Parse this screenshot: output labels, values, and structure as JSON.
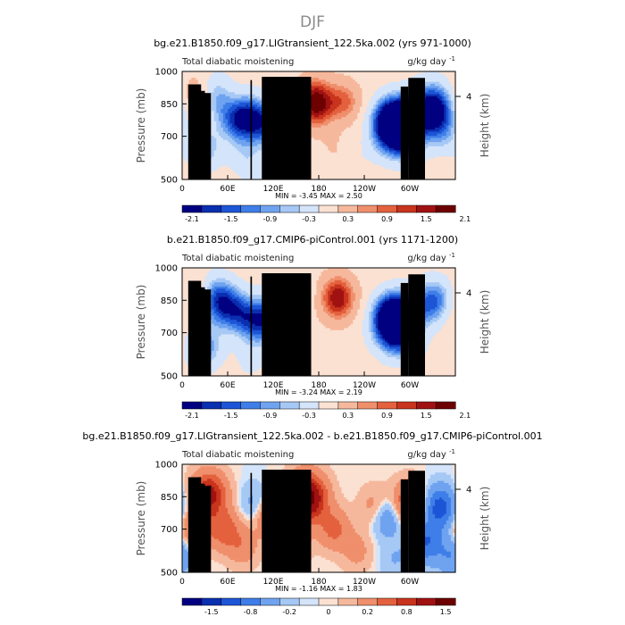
{
  "figure_title": "DJF",
  "chart_data": [
    {
      "type": "heatmap",
      "title": "bg.e21.B1850.f09_g17.LIGtransient_122.5ka.002 (yrs 971-1000)",
      "left_string": "Total diabatic moistening",
      "units": "g/kg day",
      "units_exp": "-1",
      "ylabel": "Pressure (mb)",
      "ylabel_right": "Height (km)",
      "yticks": [
        "500",
        "700",
        "850",
        "1000"
      ],
      "right_ticks": [
        "4"
      ],
      "xticks": [
        "0",
        "60E",
        "120E",
        "180",
        "120W",
        "60W"
      ],
      "xlim": [
        0,
        360
      ],
      "ylim": [
        1000,
        500
      ],
      "min_max_text": "MIN =   -3.45   MAX =    2.50",
      "colorbar_labels": [
        "-2.1",
        "-1.5",
        "-0.9",
        "-0.3",
        "0.3",
        "0.9",
        "1.5",
        "2.1"
      ],
      "features": [
        {
          "lon": 175,
          "p": 855,
          "value": 2.5
        },
        {
          "lon": 215,
          "p": 860,
          "value": 1.2
        },
        {
          "lon": 130,
          "p": 720,
          "value": 0.5
        },
        {
          "lon": 200,
          "p": 640,
          "value": 0.3
        },
        {
          "lon": 24,
          "p": 880,
          "value": 1.8
        },
        {
          "lon": 30,
          "p": 640,
          "value": -1.2
        },
        {
          "lon": 38,
          "p": 880,
          "value": -2.0
        },
        {
          "lon": 70,
          "p": 770,
          "value": -1.5
        },
        {
          "lon": 90,
          "p": 790,
          "value": -1.8
        },
        {
          "lon": 112,
          "p": 740,
          "value": -1.5
        },
        {
          "lon": 80,
          "p": 600,
          "value": -0.6
        },
        {
          "lon": 140,
          "p": 830,
          "value": -0.9
        },
        {
          "lon": 100,
          "p": 550,
          "value": -0.4
        },
        {
          "lon": 280,
          "p": 720,
          "value": -2.8
        },
        {
          "lon": 272,
          "p": 780,
          "value": -1.8
        },
        {
          "lon": 292,
          "p": 800,
          "value": -1.5
        },
        {
          "lon": 300,
          "p": 670,
          "value": -0.9
        },
        {
          "lon": 330,
          "p": 820,
          "value": -3.2
        },
        {
          "lon": 345,
          "p": 700,
          "value": -0.6
        },
        {
          "lon": 240,
          "p": 620,
          "value": -0.2
        }
      ]
    },
    {
      "type": "heatmap",
      "title": "b.e21.B1850.f09_g17.CMIP6-piControl.001 (yrs 1171-1200)",
      "left_string": "Total diabatic moistening",
      "units": "g/kg day",
      "units_exp": "-1",
      "ylabel": "Pressure (mb)",
      "ylabel_right": "Height (km)",
      "yticks": [
        "500",
        "700",
        "850",
        "1000"
      ],
      "right_ticks": [
        "4"
      ],
      "xticks": [
        "0",
        "60E",
        "120E",
        "180",
        "120W",
        "60W"
      ],
      "xlim": [
        0,
        360
      ],
      "ylim": [
        1000,
        500
      ],
      "min_max_text": "MIN =   -3.24   MAX =    2.19",
      "colorbar_labels": [
        "-2.1",
        "-1.5",
        "-0.9",
        "-0.3",
        "0.3",
        "0.9",
        "1.5",
        "2.1"
      ],
      "features": [
        {
          "lon": 205,
          "p": 860,
          "value": 2.1
        },
        {
          "lon": 24,
          "p": 880,
          "value": 1.2
        },
        {
          "lon": 150,
          "p": 760,
          "value": 0.3
        },
        {
          "lon": 30,
          "p": 630,
          "value": -1.5
        },
        {
          "lon": 38,
          "p": 870,
          "value": -1.8
        },
        {
          "lon": 60,
          "p": 820,
          "value": -1.8
        },
        {
          "lon": 85,
          "p": 770,
          "value": -1.4
        },
        {
          "lon": 108,
          "p": 740,
          "value": -1.6
        },
        {
          "lon": 125,
          "p": 820,
          "value": -1.2
        },
        {
          "lon": 150,
          "p": 870,
          "value": -0.8
        },
        {
          "lon": 90,
          "p": 580,
          "value": -0.5
        },
        {
          "lon": 280,
          "p": 720,
          "value": -3.0
        },
        {
          "lon": 272,
          "p": 790,
          "value": -1.6
        },
        {
          "lon": 292,
          "p": 800,
          "value": -1.4
        },
        {
          "lon": 300,
          "p": 650,
          "value": -0.6
        },
        {
          "lon": 332,
          "p": 840,
          "value": -2.0
        },
        {
          "lon": 350,
          "p": 780,
          "value": 0.4
        }
      ]
    },
    {
      "type": "heatmap",
      "title": "bg.e21.B1850.f09_g17.LIGtransient_122.5ka.002 - b.e21.B1850.f09_g17.CMIP6-piControl.001",
      "left_string": "Total diabatic moistening",
      "units": "g/kg day",
      "units_exp": "-1",
      "ylabel": "Pressure (mb)",
      "ylabel_right": "Height (km)",
      "yticks": [
        "500",
        "700",
        "850",
        "1000"
      ],
      "right_ticks": [
        "4"
      ],
      "xticks": [
        "0",
        "60E",
        "120E",
        "180",
        "120W",
        "60W"
      ],
      "xlim": [
        0,
        360
      ],
      "ylim": [
        1000,
        500
      ],
      "min_max_text": "MIN =   -1.16   MAX =    1.83",
      "colorbar_labels": [
        "-1.5",
        "-0.8",
        "-0.2",
        "0",
        "0.2",
        "0.8",
        "1.5"
      ],
      "features": [
        {
          "lon": 165,
          "p": 845,
          "value": 1.8
        },
        {
          "lon": 35,
          "p": 860,
          "value": 1.3
        },
        {
          "lon": 15,
          "p": 700,
          "value": 0.6
        },
        {
          "lon": 55,
          "p": 700,
          "value": 0.7
        },
        {
          "lon": 80,
          "p": 620,
          "value": 0.4
        },
        {
          "lon": 120,
          "p": 760,
          "value": 0.8
        },
        {
          "lon": 145,
          "p": 640,
          "value": 0.5
        },
        {
          "lon": 200,
          "p": 700,
          "value": 0.6
        },
        {
          "lon": 230,
          "p": 600,
          "value": 0.3
        },
        {
          "lon": 255,
          "p": 800,
          "value": 0.4
        },
        {
          "lon": 298,
          "p": 820,
          "value": 0.9
        },
        {
          "lon": 270,
          "p": 760,
          "value": -0.6
        },
        {
          "lon": 320,
          "p": 640,
          "value": -0.8
        },
        {
          "lon": 340,
          "p": 800,
          "value": -1.0
        },
        {
          "lon": 355,
          "p": 580,
          "value": -0.5
        },
        {
          "lon": 95,
          "p": 820,
          "value": -0.3
        },
        {
          "lon": 280,
          "p": 560,
          "value": -0.2
        }
      ]
    }
  ]
}
